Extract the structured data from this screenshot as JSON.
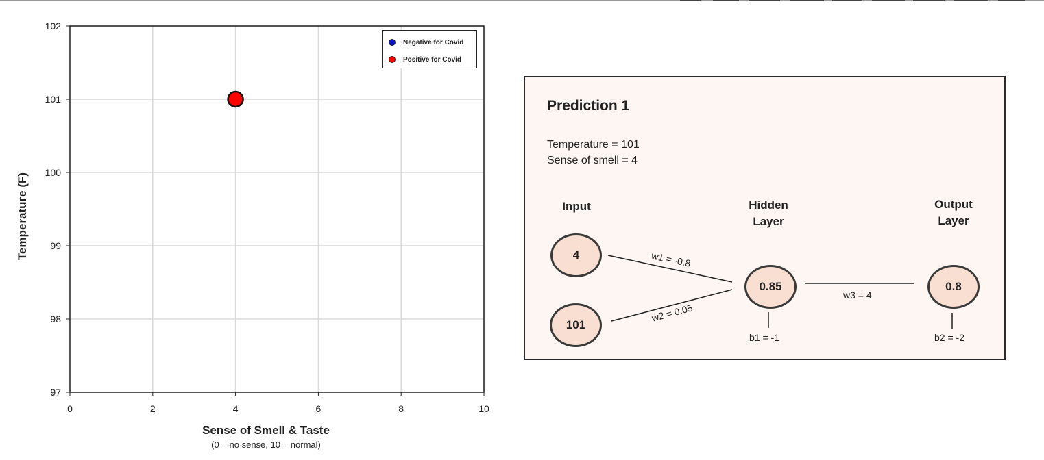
{
  "chart_data": {
    "type": "scatter",
    "xlabel": "Sense of Smell & Taste",
    "xlabel_note": "(0 = no sense, 10 = normal)",
    "ylabel": "Temperature (F)",
    "xlim": [
      0,
      10
    ],
    "ylim": [
      97,
      102
    ],
    "x_ticks": [
      "0",
      "2",
      "4",
      "6",
      "8",
      "10"
    ],
    "y_ticks": [
      "97",
      "98",
      "99",
      "100",
      "101",
      "102"
    ],
    "grid": true,
    "legend_position": "top-right",
    "legend": [
      {
        "label": "Negative for Covid",
        "color": "#0a14c8"
      },
      {
        "label": "Positive for Covid",
        "color": "#ff0000"
      }
    ],
    "series": [
      {
        "name": "Negative for Covid",
        "color": "#0a14c8",
        "points": []
      },
      {
        "name": "Positive for Covid",
        "color": "#ff0000",
        "points": [
          {
            "x": 4,
            "y": 101
          }
        ]
      }
    ]
  },
  "prediction": {
    "title": "Prediction 1",
    "lines": [
      "Temperature = 101",
      "Sense of smell = 4"
    ],
    "layers": {
      "input": "Input",
      "hidden_line1": "Hidden",
      "hidden_line2": "Layer",
      "output_line1": "Output",
      "output_line2": "Layer"
    },
    "nodes": {
      "input_smell": "4",
      "input_temp": "101",
      "hidden": "0.85",
      "output": "0.8"
    },
    "weights": {
      "w1": "w1 = -0.8",
      "w2": "w2 = 0.05",
      "w3": "w3 = 4"
    },
    "biases": {
      "b1": "b1 = -1",
      "b2": "b2 = -2"
    },
    "colors": {
      "panel_bg": "#fdf6f2",
      "node_fill": "#f9dfd2"
    }
  }
}
